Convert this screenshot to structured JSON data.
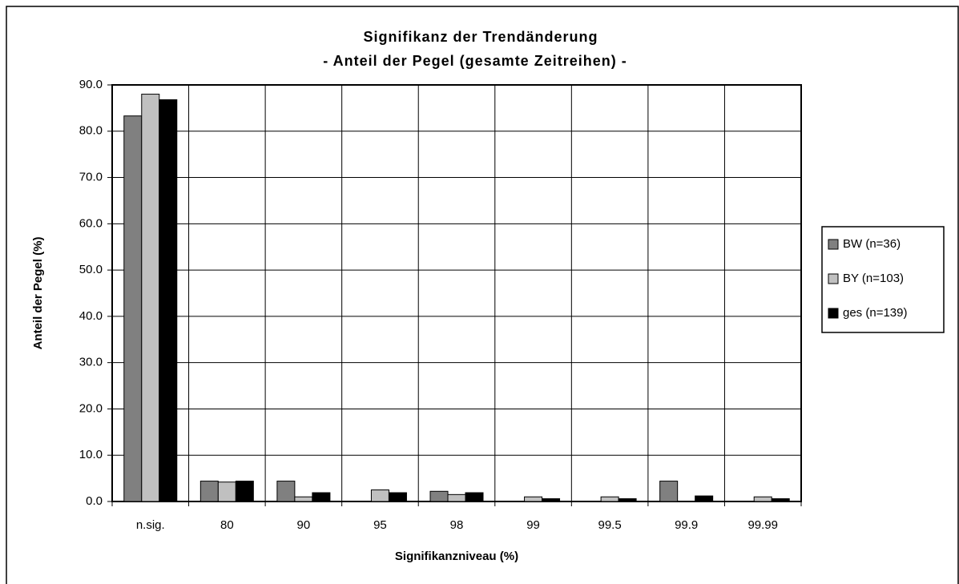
{
  "chart_data": {
    "type": "bar",
    "title": [
      "Signifikanz der Trendänderung",
      "- Anteil der Pegel (gesamte Zeitreihen) -"
    ],
    "x_label": "Signifikanzniveau (%)",
    "y_label": "Anteil der Pegel (%)",
    "categories": [
      "n.sig.",
      "80",
      "90",
      "95",
      "98",
      "99",
      "99.5",
      "99.9",
      "99.99"
    ],
    "series": [
      {
        "name": "BW (n=36)",
        "color": "#808080",
        "values": [
          83.3,
          4.4,
          4.4,
          0,
          2.2,
          0,
          0,
          4.4,
          0
        ]
      },
      {
        "name": "BY (n=103)",
        "color": "#c0c0c0",
        "values": [
          88.0,
          4.2,
          1.0,
          2.5,
          1.5,
          1.0,
          1.0,
          0,
          1.0
        ]
      },
      {
        "name": "ges (n=139)",
        "color": "#000000",
        "values": [
          86.8,
          4.4,
          1.9,
          1.9,
          1.9,
          0.6,
          0.6,
          1.2,
          0.6
        ]
      }
    ],
    "ylim": [
      0,
      90
    ],
    "yticks": [
      {
        "value": 0,
        "label": "0.0"
      },
      {
        "value": 10,
        "label": "10.0"
      },
      {
        "value": 20,
        "label": "20.0"
      },
      {
        "value": 30,
        "label": "30.0"
      },
      {
        "value": 40,
        "label": "40.0"
      },
      {
        "value": 50,
        "label": "50.0"
      },
      {
        "value": 60,
        "label": "60.0"
      },
      {
        "value": 70,
        "label": "70.0"
      },
      {
        "value": 80,
        "label": "80.0"
      },
      {
        "value": 90,
        "label": "90.0"
      }
    ],
    "grid": true,
    "legend": "right"
  }
}
